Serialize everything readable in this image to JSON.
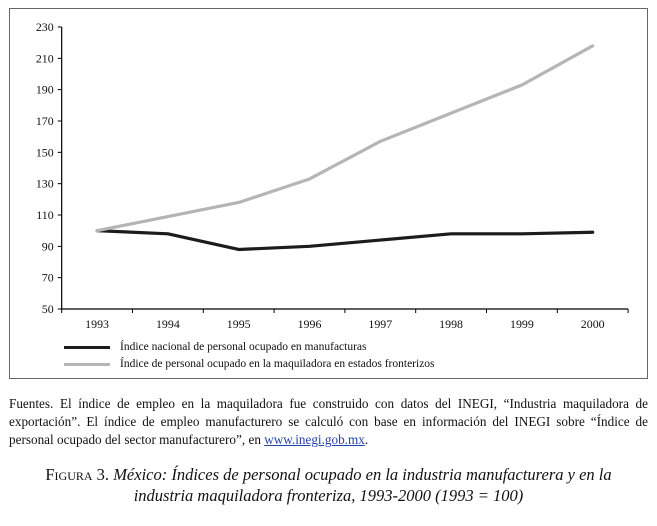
{
  "chart_data": {
    "type": "line",
    "x": [
      "1993",
      "1994",
      "1995",
      "1996",
      "1997",
      "1998",
      "1999",
      "2000"
    ],
    "series": [
      {
        "name": "Índice nacional de personal ocupado en manufacturas",
        "color": "#1c1c1c",
        "values": [
          100,
          98,
          88,
          90,
          94,
          98,
          98,
          99
        ]
      },
      {
        "name": "Índice de personal ocupado en la maquiladora en estados fronterizos",
        "color": "#b5b5b5",
        "values": [
          100,
          109,
          118,
          133,
          157,
          175,
          193,
          218
        ]
      }
    ],
    "title": "",
    "xlabel": "",
    "ylabel": "",
    "ylim": [
      50,
      230
    ],
    "ytick_step": 20,
    "grid": false,
    "legend_position": "bottom"
  },
  "source": {
    "label": "Fuentes.",
    "text_before_link": " El índice de empleo en la maquiladora fue construido con datos del INEGI, “Industria maquiladora de exportación”. El índice de empleo manufacturero se calculó con base en información del INEGI sobre “Índice de personal ocupado del sector manufacturero”, en ",
    "link": "www.inegi.gob.mx",
    "text_after_link": "."
  },
  "caption": {
    "figure_label": "Figura 3.",
    "text": " México: Índices de personal ocupado en la industria manufacturera y en la industria maquiladora fronteriza, 1993-2000 (1993 = 100)"
  }
}
